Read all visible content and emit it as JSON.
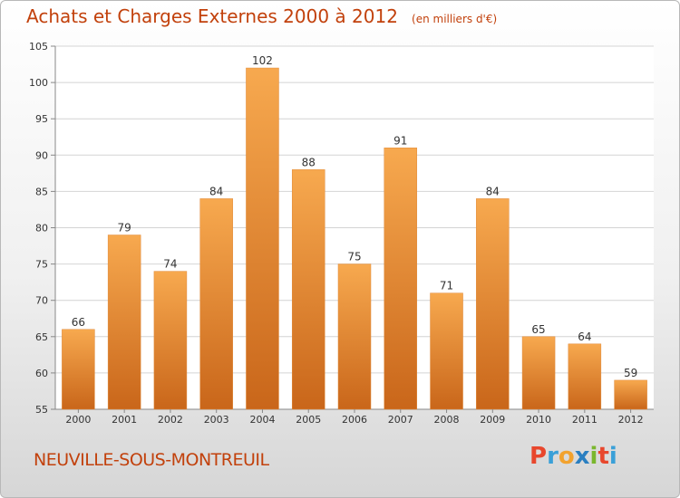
{
  "chart_data": {
    "type": "bar",
    "title": "Achats et Charges Externes 2000 à 2012",
    "unit_note": "(en milliers d'€)",
    "categories": [
      "2000",
      "2001",
      "2002",
      "2003",
      "2004",
      "2005",
      "2006",
      "2007",
      "2008",
      "2009",
      "2010",
      "2011",
      "2012"
    ],
    "values": [
      66,
      79,
      74,
      84,
      102,
      88,
      75,
      91,
      71,
      84,
      65,
      64,
      59
    ],
    "ylim": [
      55,
      105
    ],
    "yticks": [
      55,
      60,
      65,
      70,
      75,
      80,
      85,
      90,
      95,
      100,
      105
    ],
    "grid": true,
    "bar_color_top": "#f7a94f",
    "bar_color_bottom": "#c9661a"
  },
  "footer": {
    "location": "NEUVILLE-SOUS-MONTREUIL",
    "brand": "Proxiti",
    "brand_colors": [
      "#e8472d",
      "#3aa0d8",
      "#f2a22e",
      "#2a7fc1",
      "#7ab72d",
      "#e8472d",
      "#3aa0d8"
    ]
  }
}
